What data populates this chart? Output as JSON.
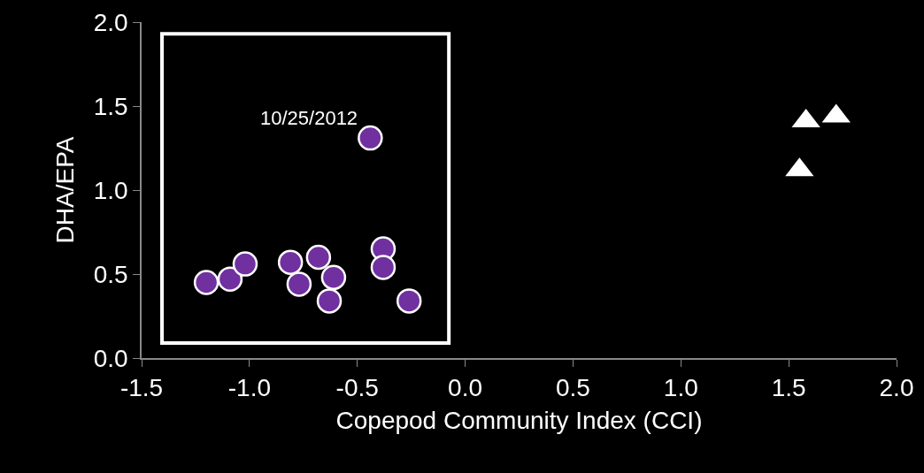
{
  "chart_data": {
    "type": "scatter",
    "xlabel": "Copepod Community Index (CCI)",
    "ylabel": "DHA/EPA",
    "xlim": [
      -1.5,
      2.0
    ],
    "xticks": [
      {
        "value": -1.5,
        "label": "-1.5"
      },
      {
        "value": -1.0,
        "label": "-1.0"
      },
      {
        "value": -0.5,
        "label": "-0.5"
      },
      {
        "value": 0,
        "label": "0.0"
      },
      {
        "value": 0.5,
        "label": "0.5"
      },
      {
        "value": 1.0,
        "label": "1.0"
      },
      {
        "value": 1.5,
        "label": "1.5"
      },
      {
        "value": 2.0,
        "label": "2.0"
      }
    ],
    "ylim": [
      0,
      2.0
    ],
    "yticks": [
      {
        "value": 0,
        "label": "0.0"
      },
      {
        "value": 0.5,
        "label": "0.5"
      },
      {
        "value": 1.0,
        "label": "1.0"
      },
      {
        "value": 1.5,
        "label": "1.5"
      },
      {
        "value": 2.0,
        "label": "2.0"
      }
    ],
    "series": [
      {
        "color": "#7030a0",
        "marker": "circle",
        "x": [
          -1.2,
          -1.09,
          -1.03,
          -1.02,
          -0.81,
          -0.77,
          -0.68,
          -0.61,
          -0.63,
          -0.44,
          -0.38,
          -0.38,
          -0.26
        ],
        "values": [
          0.45,
          0.47,
          null,
          0.56,
          0.57,
          0.44,
          0.6,
          0.48,
          0.34,
          1.31,
          0.65,
          0.54,
          0.34
        ]
      },
      {
        "color": "#ffffff",
        "marker": "triangle",
        "x": [
          1.58,
          1.72,
          1.55
        ],
        "values": [
          1.41,
          1.44,
          1.12
        ]
      }
    ],
    "annotations": [
      {
        "text": "10/25/2012",
        "x": -0.44,
        "y": 1.31
      }
    ]
  }
}
